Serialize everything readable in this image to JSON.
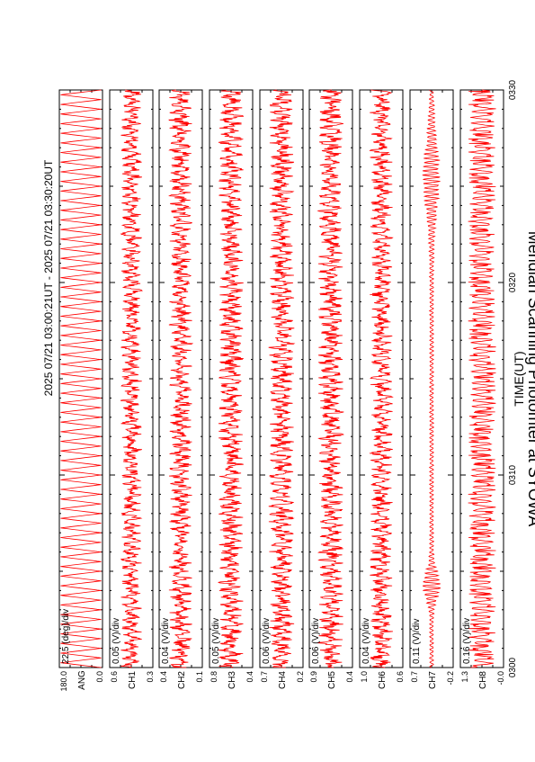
{
  "title": "Meridian Scanning Photomter at SYOWA",
  "period": "2025 07/21 03:00:21UT - 2025 07/21 03:30:20UT",
  "xlabel": "TIME(UT)",
  "chart_data": {
    "type": "line",
    "x_axis": {
      "label": "TIME(UT)",
      "range": [
        "0300",
        "0330"
      ],
      "ticks": [
        "0300",
        "0310",
        "0320",
        "0330"
      ],
      "minutes_range": [
        0,
        30
      ],
      "tick_minutes": [
        0,
        10,
        20,
        30
      ]
    },
    "line_color": "#ff0000",
    "panels": [
      {
        "scale": "22.5 (deg)/div",
        "ylabel": "ANG",
        "ymax_label": "180.0",
        "ymin_label": "0.0",
        "pattern": "sawtooth",
        "amplitude": 0.94
      },
      {
        "scale": "0.05 (V)/div",
        "ylabel": "CH1",
        "ymax_label": "0.6",
        "ymin_label": "0.3",
        "pattern": "noisy",
        "amplitude": 0.5
      },
      {
        "scale": "0.04 (V)/div",
        "ylabel": "CH2",
        "ymax_label": "0.4",
        "ymin_label": "0.1",
        "pattern": "noisy",
        "amplitude": 0.55
      },
      {
        "scale": "0.05 (V)/div",
        "ylabel": "CH3",
        "ymax_label": "0.8",
        "ymin_label": "0.4",
        "pattern": "noisy",
        "amplitude": 0.6
      },
      {
        "scale": "0.06 (V)/div",
        "ylabel": "CH4",
        "ymax_label": "0.7",
        "ymin_label": "0.2",
        "pattern": "noisy",
        "amplitude": 0.6
      },
      {
        "scale": "0.06 (V)/div",
        "ylabel": "CH5",
        "ymax_label": "0.9",
        "ymin_label": "0.4",
        "pattern": "noisy",
        "amplitude": 0.6
      },
      {
        "scale": "0.04 (V)/div",
        "ylabel": "CH6",
        "ymax_label": "1.0",
        "ymin_label": "0.6",
        "pattern": "noisy",
        "amplitude": 0.55
      },
      {
        "scale": "0.11 (V)/div",
        "ylabel": "CH7",
        "ymax_label": "0.7",
        "ymin_label": "-0.2",
        "pattern": "bursty",
        "amplitude": 0.55
      },
      {
        "scale": "0.16 (V)/div",
        "ylabel": "CH8",
        "ymax_label": "1.3",
        "ymin_label": "-0.0",
        "pattern": "spiky",
        "amplitude": 0.65
      }
    ]
  }
}
